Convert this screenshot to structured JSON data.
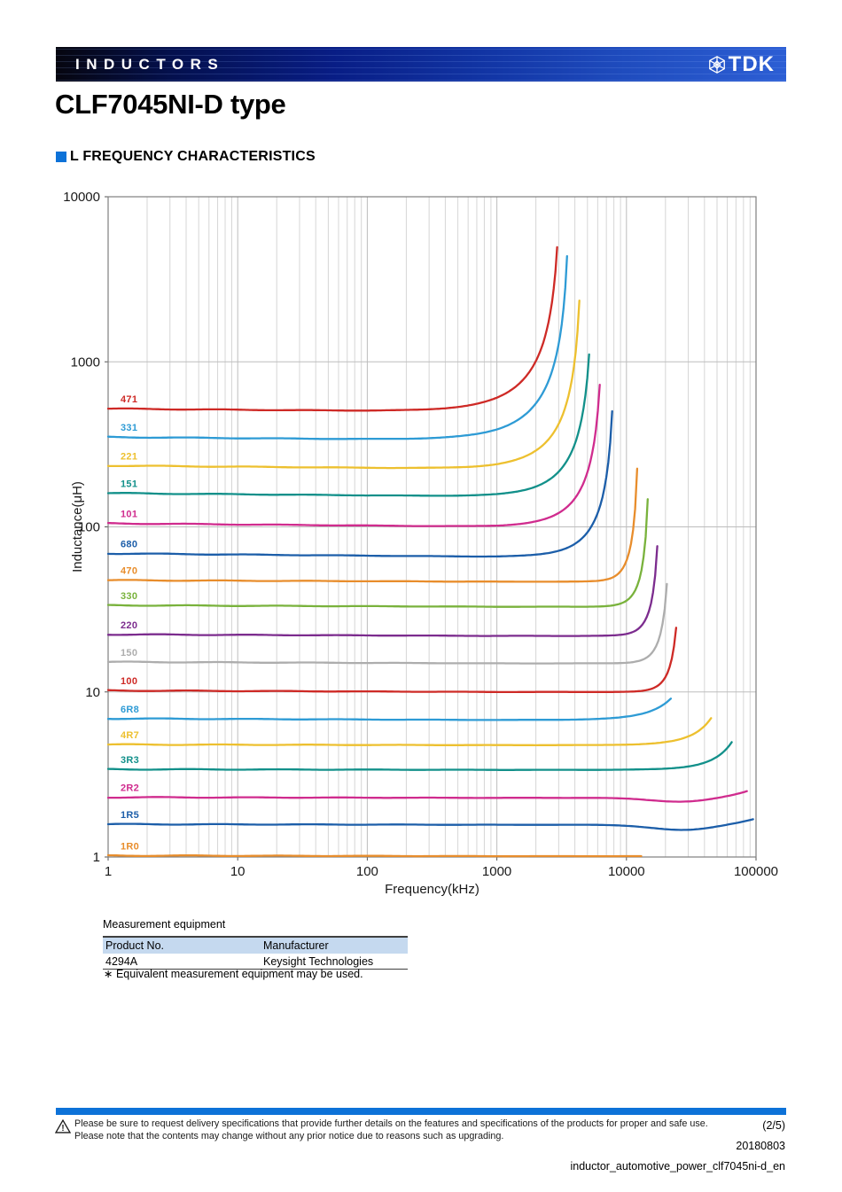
{
  "header": {
    "category": "INDUCTORS",
    "brand": "TDK"
  },
  "title": "CLF7045NI-D type",
  "section": {
    "title": "L FREQUENCY CHARACTERISTICS"
  },
  "chart_data": {
    "type": "line",
    "title": "L FREQUENCY CHARACTERISTICS",
    "xlabel": "Frequency(kHz)",
    "ylabel": "Inductance(μH)",
    "xscale": "log",
    "yscale": "log",
    "xlim": [
      1,
      100000
    ],
    "ylim": [
      1,
      10000
    ],
    "x_ticks": [
      "1",
      "10",
      "100",
      "1000",
      "10000",
      "100000"
    ],
    "y_ticks": [
      "1",
      "10",
      "100",
      "1000",
      "10000"
    ],
    "grid": "vertical log minors + decade lines; horizontal decade lines only",
    "legend_position": "labels at left end of each curve",
    "series": [
      {
        "label": "471",
        "color": "#ce2a26",
        "flat_uH": 520,
        "srf_kHz": 2920,
        "peak_uH": 5180,
        "skirt_exp": 1.5
      },
      {
        "label": "331",
        "color": "#2e9bd5",
        "flat_uH": 350,
        "srf_kHz": 3480,
        "peak_uH": 4570,
        "skirt_exp": 1.5
      },
      {
        "label": "221",
        "color": "#edc02f",
        "flat_uH": 235,
        "srf_kHz": 4330,
        "peak_uH": 2460,
        "skirt_exp": 1.8
      },
      {
        "label": "151",
        "color": "#12908a",
        "flat_uH": 160,
        "srf_kHz": 5150,
        "peak_uH": 1160,
        "skirt_exp": 2.0
      },
      {
        "label": "101",
        "color": "#d02c8e",
        "flat_uH": 105,
        "srf_kHz": 6220,
        "peak_uH": 760,
        "skirt_exp": 2.2
      },
      {
        "label": "680",
        "color": "#1c5ea9",
        "flat_uH": 69,
        "srf_kHz": 7760,
        "peak_uH": 525,
        "skirt_exp": 2.5
      },
      {
        "label": "470",
        "color": "#e88d2c",
        "flat_uH": 47.5,
        "srf_kHz": 12100,
        "peak_uH": 230,
        "skirt_exp": 6
      },
      {
        "label": "330",
        "color": "#79b23c",
        "flat_uH": 33.5,
        "srf_kHz": 14600,
        "peak_uH": 150,
        "skirt_exp": 6
      },
      {
        "label": "220",
        "color": "#7c2c8e",
        "flat_uH": 22.3,
        "srf_kHz": 17300,
        "peak_uH": 78,
        "skirt_exp": 6
      },
      {
        "label": "150",
        "color": "#adadad",
        "flat_uH": 15.2,
        "srf_kHz": 20500,
        "peak_uH": 46,
        "skirt_exp": 6
      },
      {
        "label": "100",
        "color": "#ce2a26",
        "flat_uH": 10.2,
        "srf_kHz": 24200,
        "peak_uH": 25,
        "skirt_exp": 6
      },
      {
        "label": "6R8",
        "color": "#2e9bd5",
        "flat_uH": 6.9,
        "srf_kHz": 22000,
        "peak_uH": 9.3,
        "skirt_exp": 2.2
      },
      {
        "label": "4R7",
        "color": "#edc02f",
        "flat_uH": 4.8,
        "srf_kHz": 45000,
        "peak_uH": 7.0,
        "skirt_exp": 2.5
      },
      {
        "label": "3R3",
        "color": "#12908a",
        "flat_uH": 3.4,
        "srf_kHz": 65000,
        "peak_uH": 5.0,
        "skirt_exp": 2.5
      },
      {
        "label": "2R2",
        "color": "#d02c8e",
        "flat_uH": 2.3,
        "srf_kHz": 85000,
        "peak_uH": 2.55,
        "skirt_exp": 2,
        "dip_uH": 2.16,
        "dip_kHz": 28000
      },
      {
        "label": "1R5",
        "color": "#1c5ea9",
        "flat_uH": 1.58,
        "srf_kHz": 95000,
        "peak_uH": 1.72,
        "skirt_exp": 2,
        "dip_uH": 1.46,
        "dip_kHz": 28000
      },
      {
        "label": "1R0",
        "color": "#e88d2c",
        "flat_uH": 1.02,
        "srf_kHz": 13000,
        "peak_uH": 1.02,
        "skirt_exp": 0
      }
    ]
  },
  "equipment": {
    "caption": "Measurement equipment",
    "columns": [
      "Product No.",
      "Manufacturer"
    ],
    "rows": [
      [
        "4294A",
        "Keysight Technologies"
      ]
    ],
    "note": "∗ Equivalent measurement equipment may be used."
  },
  "footer": {
    "warning_line1": "Please be sure to request delivery specifications that provide further details on the features and specifications of the products for proper and safe use.",
    "warning_line2": "Please note that the contents may change without any prior notice due to reasons such as upgrading.",
    "page": "(2/5)",
    "date": "20180803",
    "doc_id": "inductor_automotive_power_clf7045ni-d_en"
  }
}
